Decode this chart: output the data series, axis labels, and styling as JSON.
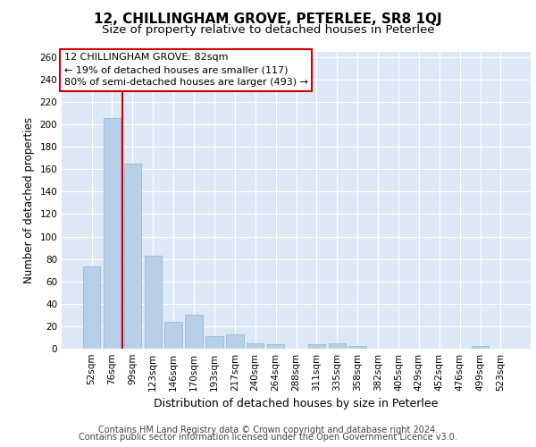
{
  "title1": "12, CHILLINGHAM GROVE, PETERLEE, SR8 1QJ",
  "title2": "Size of property relative to detached houses in Peterlee",
  "xlabel": "Distribution of detached houses by size in Peterlee",
  "ylabel": "Number of detached properties",
  "categories": [
    "52sqm",
    "76sqm",
    "99sqm",
    "123sqm",
    "146sqm",
    "170sqm",
    "193sqm",
    "217sqm",
    "240sqm",
    "264sqm",
    "288sqm",
    "311sqm",
    "335sqm",
    "358sqm",
    "382sqm",
    "405sqm",
    "429sqm",
    "452sqm",
    "476sqm",
    "499sqm",
    "523sqm"
  ],
  "values": [
    73,
    206,
    165,
    83,
    24,
    30,
    11,
    13,
    5,
    4,
    0,
    4,
    5,
    2,
    0,
    0,
    0,
    0,
    0,
    2,
    0
  ],
  "bar_color": "#b8cfe8",
  "bar_edge_color": "#9ab8d8",
  "vline_x": 1.5,
  "vline_color": "#cc0000",
  "annotation_title": "12 CHILLINGHAM GROVE: 82sqm",
  "annotation_line1": "← 19% of detached houses are smaller (117)",
  "annotation_line2": "80% of semi-detached houses are larger (493) →",
  "annotation_box_color": "#ffffff",
  "annotation_box_edge": "#cc0000",
  "ylim": [
    0,
    265
  ],
  "yticks": [
    0,
    20,
    40,
    60,
    80,
    100,
    120,
    140,
    160,
    180,
    200,
    220,
    240,
    260
  ],
  "footer1": "Contains HM Land Registry data © Crown copyright and database right 2024.",
  "footer2": "Contains public sector information licensed under the Open Government Licence v3.0.",
  "fig_bg_color": "#ffffff",
  "plot_bg_color": "#dce8f5",
  "grid_color": "#ffffff",
  "title1_fontsize": 11,
  "title2_fontsize": 9.5,
  "xlabel_fontsize": 9,
  "ylabel_fontsize": 8.5,
  "tick_fontsize": 7.5,
  "footer_fontsize": 7,
  "ann_fontsize": 8
}
